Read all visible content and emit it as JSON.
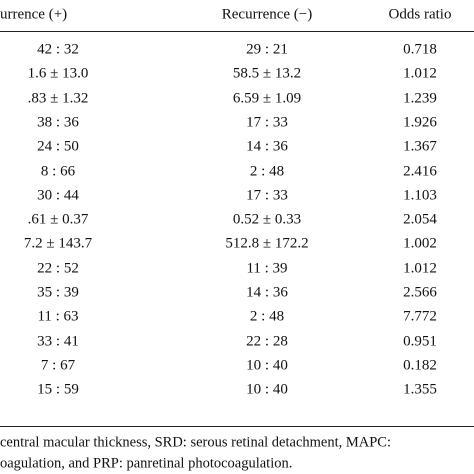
{
  "table": {
    "header": [
      "urrence (+)",
      "Recurrence (−)",
      "Odds ratio"
    ],
    "rows": [
      [
        "42 : 32",
        "29 : 21",
        "0.718"
      ],
      [
        "1.6 ± 13.0",
        "58.5 ± 13.2",
        "1.012"
      ],
      [
        ".83 ± 1.32",
        "6.59 ± 1.09",
        "1.239"
      ],
      [
        "38 : 36",
        "17 : 33",
        "1.926"
      ],
      [
        "24 : 50",
        "14 : 36",
        "1.367"
      ],
      [
        "8 : 66",
        "2 : 48",
        "2.416"
      ],
      [
        "30 : 44",
        "17 : 33",
        "1.103"
      ],
      [
        ".61 ± 0.37",
        "0.52 ± 0.33",
        "2.054"
      ],
      [
        "7.2 ± 143.7",
        "512.8 ± 172.2",
        "1.002"
      ],
      [
        "22 : 52",
        "11 : 39",
        "1.012"
      ],
      [
        "35 : 39",
        "14 : 36",
        "2.566"
      ],
      [
        "11 : 63",
        "2 : 48",
        "7.772"
      ],
      [
        "33 : 41",
        "22 : 28",
        "0.951"
      ],
      [
        "7 : 67",
        "10 : 40",
        "0.182"
      ],
      [
        "15 : 59",
        "10 : 40",
        "1.355"
      ]
    ]
  },
  "footnote": [
    "central macular thickness, SRD: serous retinal detachment, MAPC: ",
    "oagulation, and PRP: panretinal photocoagulation."
  ]
}
